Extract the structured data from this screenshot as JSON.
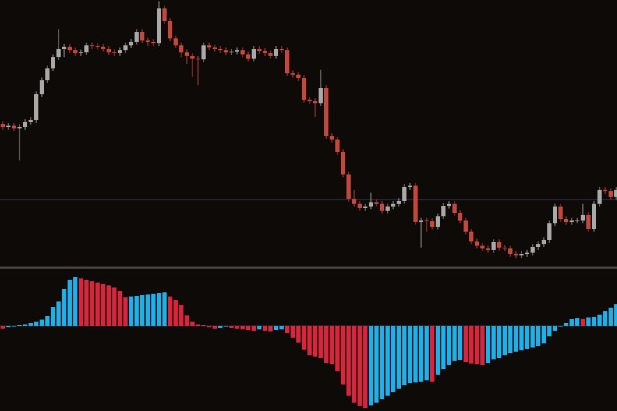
{
  "chart_data": [
    {
      "type": "candlestick",
      "up_color": "#a9a9a9",
      "down_color": "#c9473a",
      "level_color": "#3b3f55",
      "ylim": [
        0,
        382
      ],
      "level": 96,
      "open": [
        204,
        200,
        202,
        198,
        200,
        207,
        210,
        247,
        267,
        284,
        300,
        312,
        315,
        310,
        306,
        307,
        317,
        316,
        315,
        312,
        307,
        306,
        310,
        317,
        322,
        336,
        324,
        322,
        320,
        370,
        352,
        327,
        317,
        307,
        302,
        298,
        297,
        317,
        314,
        312,
        310,
        307,
        308,
        310,
        304,
        298,
        312,
        309,
        306,
        302,
        312,
        310,
        277,
        275,
        270,
        239,
        237,
        234,
        256,
        187,
        182,
        164,
        132,
        97,
        90,
        84,
        86,
        92,
        90,
        80,
        86,
        90,
        94,
        114,
        116,
        64,
        66,
        65,
        57,
        72,
        87,
        90,
        77,
        66,
        50,
        36,
        30,
        26,
        24,
        35,
        27,
        26,
        18,
        16,
        18,
        20,
        28,
        32,
        38,
        62,
        86,
        68,
        64,
        66,
        66,
        74,
        54,
        90,
        110,
        108,
        100
      ],
      "high": [
        208,
        206,
        206,
        204,
        211,
        214,
        251,
        271,
        288,
        304,
        340,
        319,
        319,
        314,
        311,
        321,
        321,
        320,
        319,
        316,
        311,
        314,
        321,
        326,
        340,
        340,
        328,
        326,
        380,
        374,
        356,
        331,
        321,
        311,
        306,
        302,
        321,
        321,
        318,
        316,
        314,
        312,
        314,
        314,
        308,
        316,
        316,
        313,
        310,
        316,
        316,
        314,
        281,
        279,
        274,
        243,
        241,
        282,
        260,
        191,
        186,
        168,
        136,
        110,
        94,
        90,
        106,
        96,
        94,
        90,
        94,
        98,
        118,
        120,
        120,
        70,
        70,
        69,
        76,
        91,
        94,
        94,
        81,
        70,
        54,
        40,
        34,
        30,
        39,
        39,
        31,
        30,
        22,
        22,
        24,
        32,
        36,
        42,
        66,
        90,
        90,
        72,
        70,
        70,
        90,
        78,
        94,
        114,
        114,
        112,
        114
      ],
      "low": [
        196,
        196,
        194,
        152,
        196,
        203,
        206,
        243,
        263,
        280,
        296,
        300,
        306,
        302,
        302,
        303,
        312,
        311,
        308,
        303,
        302,
        302,
        306,
        313,
        318,
        320,
        316,
        316,
        316,
        348,
        323,
        313,
        300,
        290,
        272,
        260,
        293,
        310,
        308,
        306,
        303,
        303,
        304,
        300,
        294,
        294,
        305,
        302,
        298,
        298,
        306,
        273,
        271,
        266,
        235,
        233,
        214,
        230,
        183,
        178,
        160,
        128,
        93,
        86,
        80,
        80,
        82,
        86,
        76,
        76,
        82,
        86,
        90,
        110,
        60,
        27,
        50,
        53,
        53,
        68,
        83,
        73,
        62,
        46,
        32,
        26,
        22,
        20,
        20,
        23,
        22,
        14,
        12,
        12,
        14,
        16,
        24,
        28,
        34,
        58,
        64,
        60,
        60,
        62,
        62,
        50,
        50,
        86,
        104,
        96,
        96
      ],
      "close": [
        200,
        202,
        198,
        200,
        207,
        210,
        247,
        267,
        284,
        300,
        312,
        315,
        310,
        306,
        307,
        317,
        316,
        315,
        312,
        307,
        306,
        310,
        317,
        322,
        336,
        324,
        322,
        320,
        370,
        352,
        327,
        317,
        307,
        302,
        298,
        297,
        317,
        314,
        312,
        310,
        307,
        308,
        310,
        304,
        298,
        312,
        309,
        306,
        302,
        312,
        310,
        277,
        275,
        270,
        239,
        237,
        234,
        256,
        187,
        182,
        164,
        132,
        97,
        90,
        84,
        86,
        92,
        90,
        80,
        86,
        90,
        94,
        114,
        116,
        64,
        66,
        65,
        57,
        72,
        87,
        90,
        77,
        66,
        50,
        36,
        30,
        26,
        24,
        35,
        27,
        26,
        18,
        16,
        18,
        20,
        28,
        32,
        38,
        62,
        86,
        68,
        64,
        66,
        66,
        74,
        54,
        90,
        110,
        108,
        100,
        110
      ]
    },
    {
      "type": "bar",
      "up_color": "#12b5ef",
      "down_color": "#e3203f",
      "zero_color": "#3a3a3a",
      "ylim": [
        -122,
        81
      ],
      "values": [
        -4,
        -2,
        -1,
        1,
        2,
        4,
        6,
        9,
        14,
        27,
        35,
        53,
        66,
        70,
        68,
        66,
        64,
        62,
        60,
        58,
        55,
        50,
        41,
        42,
        43,
        44,
        45,
        46,
        47,
        48,
        42,
        37,
        30,
        15,
        6,
        2,
        1,
        -2,
        -4,
        -3,
        -1,
        -3,
        -4,
        -5,
        -6,
        -7,
        -5,
        -7,
        -8,
        -6,
        -5,
        -10,
        -17,
        -24,
        -34,
        -42,
        -44,
        -46,
        -53,
        -55,
        -65,
        -84,
        -100,
        -110,
        -115,
        -118,
        -114,
        -110,
        -105,
        -100,
        -95,
        -90,
        -85,
        -82,
        -81,
        -80,
        -78,
        -80,
        -70,
        -62,
        -56,
        -50,
        -49,
        -52,
        -54,
        -55,
        -56,
        -53,
        -48,
        -46,
        -42,
        -39,
        -37,
        -35,
        -33,
        -31,
        -29,
        -25,
        -15,
        -7,
        -1,
        4,
        10,
        11,
        10,
        12,
        13,
        16,
        21,
        26,
        31
      ]
    }
  ]
}
